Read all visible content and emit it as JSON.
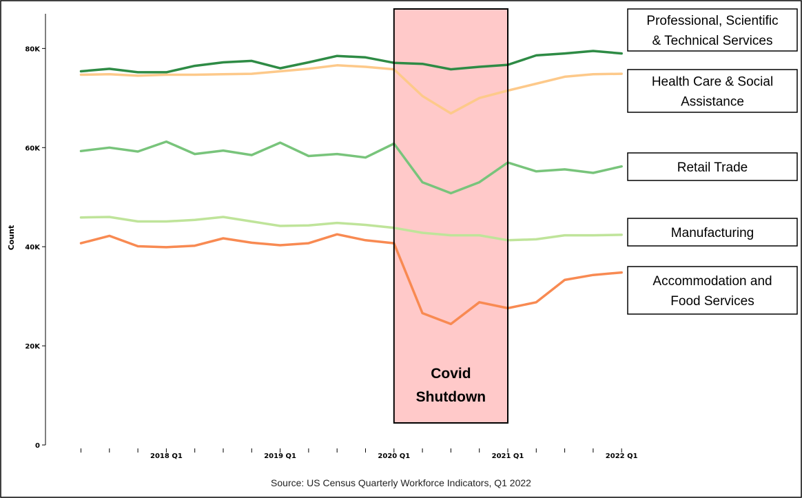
{
  "chart_data": {
    "type": "line",
    "ylabel": "Count",
    "ylim": [
      0,
      87000
    ],
    "y_ticks": [
      {
        "value": 0,
        "label": "0"
      },
      {
        "value": 20000,
        "label": "20K"
      },
      {
        "value": 40000,
        "label": "40K"
      },
      {
        "value": 60000,
        "label": "60K"
      },
      {
        "value": 80000,
        "label": "80K"
      }
    ],
    "x_quarters": [
      "2017 Q2",
      "2017 Q3",
      "2017 Q4",
      "2018 Q1",
      "2018 Q2",
      "2018 Q3",
      "2018 Q4",
      "2019 Q1",
      "2019 Q2",
      "2019 Q3",
      "2019 Q4",
      "2020 Q1",
      "2020 Q2",
      "2020 Q3",
      "2020 Q4",
      "2021 Q1",
      "2021 Q2",
      "2021 Q3",
      "2021 Q4",
      "2022 Q1"
    ],
    "x_tick_labels": [
      {
        "index": 3,
        "label": "2018 Q1"
      },
      {
        "index": 7,
        "label": "2019 Q1"
      },
      {
        "index": 11,
        "label": "2020 Q1"
      },
      {
        "index": 15,
        "label": "2021 Q1"
      },
      {
        "index": 19,
        "label": "2022 Q1"
      }
    ],
    "series": [
      {
        "name": "Professional, Scientific & Technical Services",
        "color": "#2e8b45",
        "values": [
          75400,
          75900,
          75200,
          75200,
          76500,
          77200,
          77500,
          76000,
          77200,
          78500,
          78200,
          77100,
          76900,
          75800,
          76300,
          76700,
          78600,
          79000,
          79500,
          79000
        ]
      },
      {
        "name": "Health Care & Social Assistance",
        "color": "#fdc98a",
        "values": [
          74700,
          74800,
          74500,
          74700,
          74700,
          74800,
          74900,
          75400,
          75900,
          76600,
          76300,
          75800,
          70400,
          66900,
          70000,
          71500,
          72900,
          74300,
          74800,
          74900
        ]
      },
      {
        "name": "Retail Trade",
        "color": "#78c47b",
        "values": [
          59300,
          60000,
          59200,
          61200,
          58700,
          59400,
          58500,
          61000,
          58300,
          58700,
          58000,
          60800,
          53000,
          50800,
          53000,
          57000,
          55200,
          55600,
          54900,
          56200
        ]
      },
      {
        "name": "Manufacturing",
        "color": "#bfe49a",
        "values": [
          45900,
          46000,
          45100,
          45100,
          45400,
          46000,
          45100,
          44200,
          44300,
          44800,
          44400,
          43800,
          42800,
          42300,
          42300,
          41300,
          41500,
          42300,
          42300,
          42400
        ]
      },
      {
        "name": "Accommodation and Food Services",
        "color": "#f88a52",
        "values": [
          40700,
          42200,
          40100,
          39900,
          40200,
          41700,
          40800,
          40300,
          40700,
          42500,
          41300,
          40700,
          26600,
          24400,
          28800,
          27600,
          28800,
          33300,
          34300,
          34800
        ]
      }
    ],
    "shaded_region": {
      "from_quarter": "2020 Q1",
      "to_quarter": "2021 Q1",
      "label_lines": [
        "Covid",
        "Shutdown"
      ],
      "fill": "#ffc9c9"
    },
    "legend": [
      {
        "series": "Professional, Scientific & Technical Services",
        "lines": [
          "Professional, Scientific",
          "& Technical Services"
        ]
      },
      {
        "series": "Health Care & Social Assistance",
        "lines": [
          "Health Care & Social",
          "Assistance"
        ]
      },
      {
        "series": "Retail Trade",
        "lines": [
          "Retail Trade"
        ]
      },
      {
        "series": "Manufacturing",
        "lines": [
          "Manufacturing"
        ]
      },
      {
        "series": "Accommodation and Food Services",
        "lines": [
          "Accommodation and",
          "Food Services"
        ]
      }
    ],
    "legend_placement": "right",
    "grid": false
  },
  "source": "Source: US Census Quarterly Workforce Indicators, Q1 2022"
}
